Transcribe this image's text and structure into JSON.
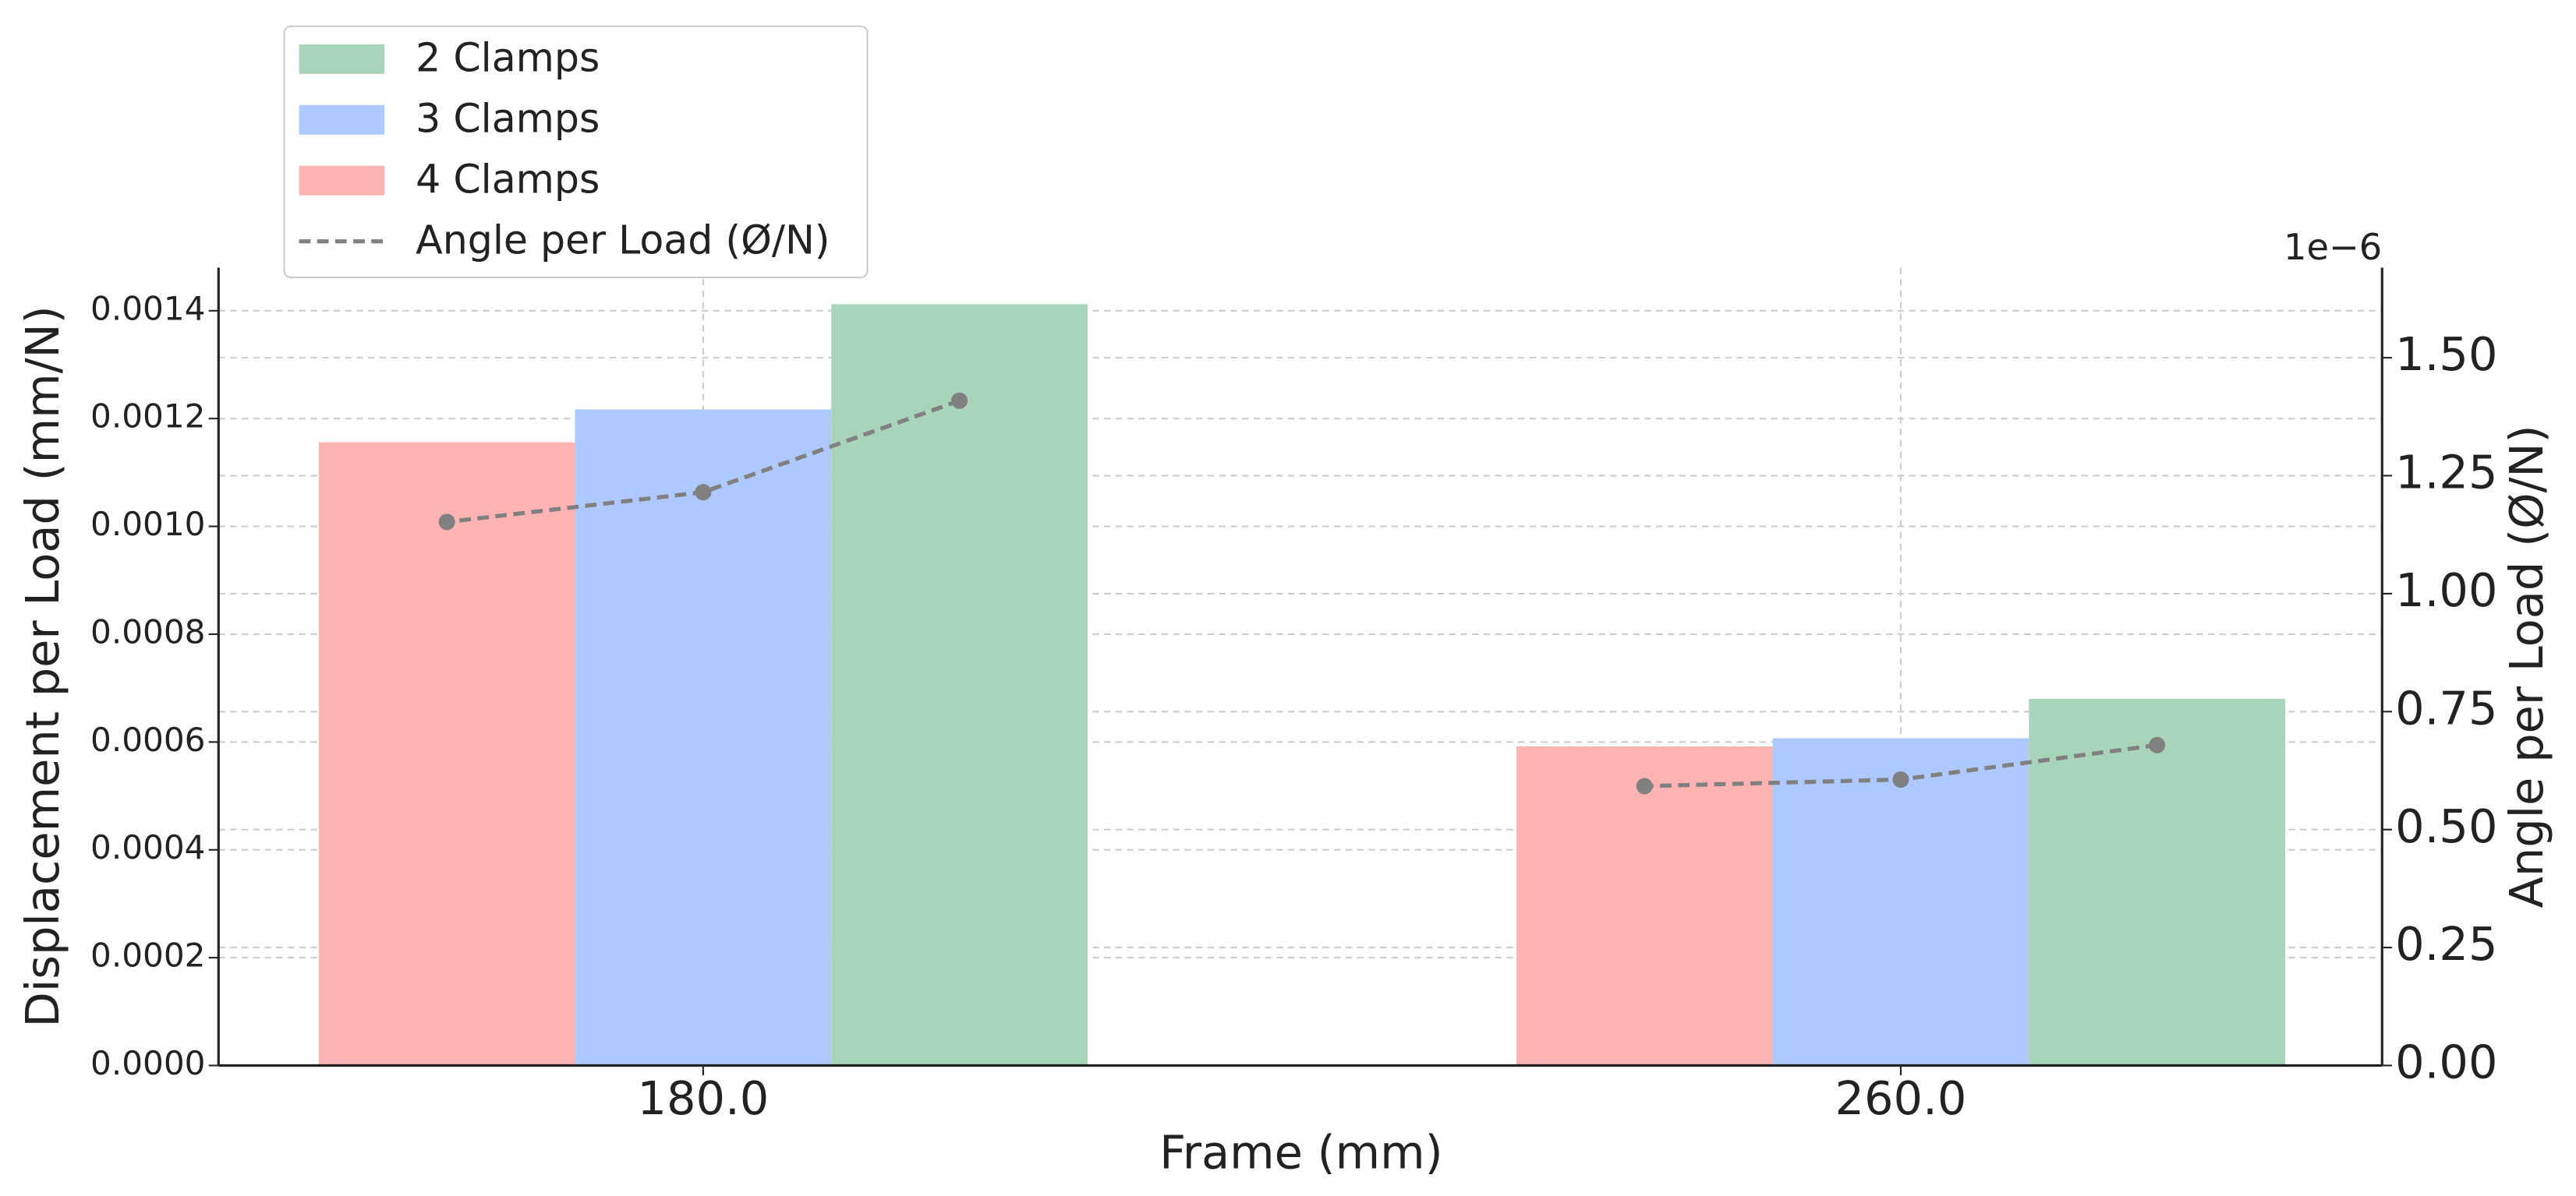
{
  "chart_data": {
    "type": "grouped-bar-line",
    "x_label": "Frame (mm)",
    "y_label": "Displacement per Load (mm/N)",
    "y2_label": "Angle per Load (Ø/N)",
    "y2_offset_label": "1e−6",
    "categories": [
      "180.0",
      "260.0"
    ],
    "series": [
      {
        "name": "2 Clamps",
        "color": "#a8d5ba",
        "values": [
          0.001412,
          0.00068
        ]
      },
      {
        "name": "3 Clamps",
        "color": "#aec9fe",
        "values": [
          0.001217,
          0.000607
        ]
      },
      {
        "name": "4 Clamps",
        "color": "#ffb3b3",
        "values": [
          0.001156,
          0.000592
        ]
      }
    ],
    "line": {
      "name": "Angle per Load (Ø/N)",
      "color": "#808080",
      "axis": "y2",
      "values": [
        [
          1.409e-06,
          1.215e-06,
          1.152e-06
        ],
        [
          6.79e-07,
          6.06e-07,
          5.92e-07
        ]
      ]
    },
    "ylim": [
      0,
      0.00148
    ],
    "yticks": [
      {
        "value": 0,
        "label": "0.0000"
      },
      {
        "value": 0.0002,
        "label": "0.0002"
      },
      {
        "value": 0.0004,
        "label": "0.0004"
      },
      {
        "value": 0.0006,
        "label": "0.0006"
      },
      {
        "value": 0.0008,
        "label": "0.0008"
      },
      {
        "value": 0.001,
        "label": "0.0010"
      },
      {
        "value": 0.0012,
        "label": "0.0012"
      },
      {
        "value": 0.0014,
        "label": "0.0014"
      }
    ],
    "y2lim": [
      0,
      1.691e-06
    ],
    "y2ticks": [
      {
        "value": 0,
        "label": "0.00"
      },
      {
        "value": 2.5e-07,
        "label": "0.25"
      },
      {
        "value": 5e-07,
        "label": "0.50"
      },
      {
        "value": 7.5e-07,
        "label": "0.75"
      },
      {
        "value": 1e-06,
        "label": "1.00"
      },
      {
        "value": 1.25e-06,
        "label": "1.25"
      },
      {
        "value": 1.5e-06,
        "label": "1.50"
      }
    ],
    "grid": true,
    "legend": "upper left outside"
  }
}
